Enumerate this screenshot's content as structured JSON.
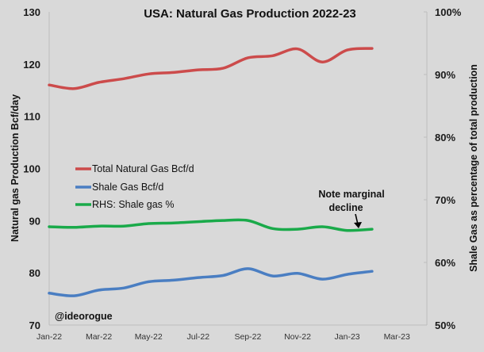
{
  "chart_data": {
    "type": "line",
    "title": "USA: Natural Gas Production 2022-23",
    "ylabel": "Natural gas Production Bcf/day",
    "y2label": "Shale Gas as percentage of total production",
    "xlabel": "",
    "ylim": [
      70,
      130
    ],
    "y2lim": [
      50,
      100
    ],
    "yticks": [
      "70",
      "80",
      "90",
      "100",
      "110",
      "120",
      "130"
    ],
    "y2ticks": [
      "50%",
      "60%",
      "70%",
      "80%",
      "90%",
      "100%"
    ],
    "xticks": [
      "Jan-22",
      "Mar-22",
      "May-22",
      "Jul-22",
      "Sep-22",
      "Nov-22",
      "Jan-23",
      "Mar-23"
    ],
    "x": [
      "Jan-22",
      "Feb-22",
      "Mar-22",
      "Apr-22",
      "May-22",
      "Jun-22",
      "Jul-22",
      "Aug-22",
      "Sep-22",
      "Oct-22",
      "Nov-22",
      "Dec-22",
      "Jan-23",
      "Feb-23"
    ],
    "series": [
      {
        "name": "Total Natural Gas Bcf/d",
        "axis": "left",
        "color": "#cc4b4b",
        "values": [
          116.0,
          115.3,
          116.5,
          117.2,
          118.1,
          118.4,
          118.9,
          119.2,
          121.2,
          121.6,
          122.9,
          120.4,
          122.7,
          123.0
        ]
      },
      {
        "name": "Shale Gas Bcf/d",
        "axis": "left",
        "color": "#4a7ec2",
        "values": [
          76.1,
          75.6,
          76.7,
          77.1,
          78.3,
          78.6,
          79.1,
          79.5,
          80.8,
          79.4,
          79.9,
          78.8,
          79.7,
          80.3
        ]
      },
      {
        "name": "RHS: Shale gas %",
        "axis": "right",
        "color": "#1aaa4a",
        "values": [
          65.7,
          65.6,
          65.8,
          65.8,
          66.2,
          66.3,
          66.5,
          66.7,
          66.7,
          65.4,
          65.3,
          65.7,
          65.1,
          65.3
        ]
      }
    ],
    "legend_position": "center-left",
    "grid": false,
    "annotations": [
      {
        "text_line1": "Note marginal",
        "text_line2": "decline",
        "points_to": "Jan-23",
        "series": "RHS: Shale gas %"
      }
    ],
    "watermark": "@ideorogue"
  }
}
